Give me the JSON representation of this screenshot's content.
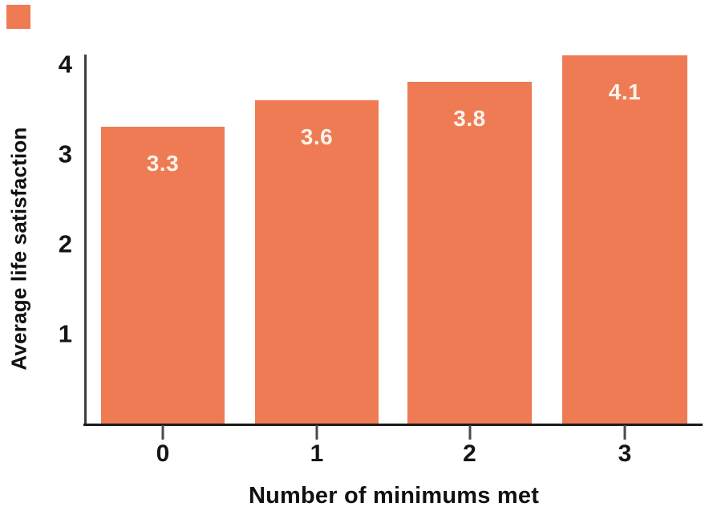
{
  "chart_data": {
    "type": "bar",
    "categories": [
      "0",
      "1",
      "2",
      "3"
    ],
    "values": [
      3.3,
      3.6,
      3.8,
      4.1
    ],
    "value_labels": [
      "3.3",
      "3.6",
      "3.8",
      "4.1"
    ],
    "title": "",
    "xlabel": "Number of minimums met",
    "ylabel": "Average life satisfaction",
    "yticks": [
      4,
      3,
      2,
      1
    ],
    "ylim": [
      0,
      4.1
    ],
    "grid": false,
    "legend": false,
    "bar_color": "#EE7B54",
    "bar_label_color": "#FCF3EA",
    "axis_color": "#1A1A1A",
    "tick_color": "#4A4A4A",
    "text_color": "#151515"
  },
  "branding": {
    "corner_square_color": "#EE7B54"
  }
}
